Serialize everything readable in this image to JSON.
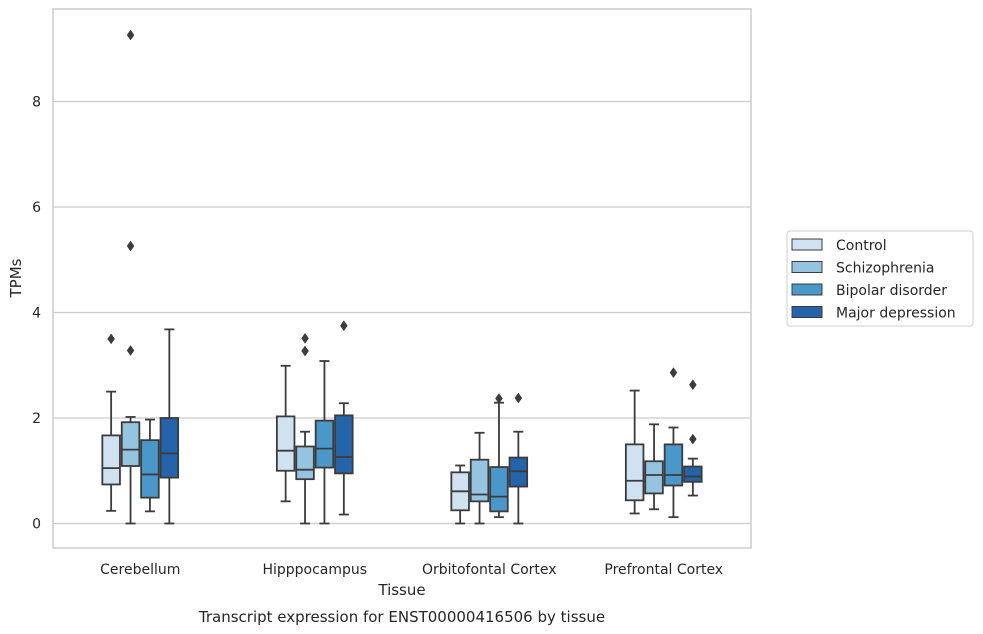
{
  "chart_data": {
    "type": "box",
    "title": "",
    "caption": "Transcript expression for ENST00000416506 by tissue",
    "xlabel": "Tissue",
    "ylabel": "TPMs",
    "ylim": [
      -0.45,
      9.75
    ],
    "yticks": [
      0,
      2,
      4,
      6,
      8
    ],
    "grid": true,
    "legend_placement": "right",
    "categories": [
      "Cerebellum",
      "Hipppocampus",
      "Orbitofontal Cortex",
      "Prefrontal Cortex"
    ],
    "series": [
      {
        "name": "Control",
        "color": "#d0e1f2",
        "boxes": [
          {
            "whisker_low": 0.24,
            "q1": 0.74,
            "median": 1.05,
            "q3": 1.67,
            "whisker_high": 2.5,
            "outliers": [
              3.5
            ]
          },
          {
            "whisker_low": 0.42,
            "q1": 1.0,
            "median": 1.38,
            "q3": 2.03,
            "whisker_high": 2.99,
            "outliers": []
          },
          {
            "whisker_low": 0.0,
            "q1": 0.25,
            "median": 0.61,
            "q3": 0.97,
            "whisker_high": 1.1,
            "outliers": []
          },
          {
            "whisker_low": 0.19,
            "q1": 0.44,
            "median": 0.81,
            "q3": 1.5,
            "whisker_high": 2.52,
            "outliers": []
          }
        ]
      },
      {
        "name": "Schizophrenia",
        "color": "#94c4df",
        "boxes": [
          {
            "whisker_low": 0.0,
            "q1": 1.09,
            "median": 1.4,
            "q3": 1.92,
            "whisker_high": 2.02,
            "outliers": [
              3.28,
              5.26,
              9.26
            ]
          },
          {
            "whisker_low": 0.0,
            "q1": 0.84,
            "median": 1.02,
            "q3": 1.46,
            "whisker_high": 1.74,
            "outliers": [
              3.27,
              3.51
            ]
          },
          {
            "whisker_low": 0.0,
            "q1": 0.42,
            "median": 0.55,
            "q3": 1.21,
            "whisker_high": 1.72,
            "outliers": []
          },
          {
            "whisker_low": 0.27,
            "q1": 0.57,
            "median": 0.92,
            "q3": 1.18,
            "whisker_high": 1.88,
            "outliers": []
          }
        ]
      },
      {
        "name": "Bipolar disorder",
        "color": "#4a98c9",
        "boxes": [
          {
            "whisker_low": 0.23,
            "q1": 0.49,
            "median": 0.93,
            "q3": 1.58,
            "whisker_high": 1.97,
            "outliers": []
          },
          {
            "whisker_low": 0.0,
            "q1": 1.06,
            "median": 1.42,
            "q3": 1.95,
            "whisker_high": 3.08,
            "outliers": []
          },
          {
            "whisker_low": 0.12,
            "q1": 0.23,
            "median": 0.51,
            "q3": 1.07,
            "whisker_high": 2.29,
            "outliers": [
              2.37
            ]
          },
          {
            "whisker_low": 0.12,
            "q1": 0.72,
            "median": 0.92,
            "q3": 1.5,
            "whisker_high": 1.82,
            "outliers": [
              2.86
            ]
          }
        ]
      },
      {
        "name": "Major depression",
        "color": "#2464ab",
        "boxes": [
          {
            "whisker_low": 0.0,
            "q1": 0.87,
            "median": 1.33,
            "q3": 2.0,
            "whisker_high": 3.68,
            "outliers": []
          },
          {
            "whisker_low": 0.17,
            "q1": 0.95,
            "median": 1.26,
            "q3": 2.05,
            "whisker_high": 2.28,
            "outliers": [
              3.75
            ]
          },
          {
            "whisker_low": 0.0,
            "q1": 0.7,
            "median": 0.99,
            "q3": 1.25,
            "whisker_high": 1.74,
            "outliers": [
              2.38
            ]
          },
          {
            "whisker_low": 0.53,
            "q1": 0.79,
            "median": 0.89,
            "q3": 1.08,
            "whisker_high": 1.23,
            "outliers": [
              1.6,
              2.63
            ]
          }
        ]
      }
    ]
  }
}
